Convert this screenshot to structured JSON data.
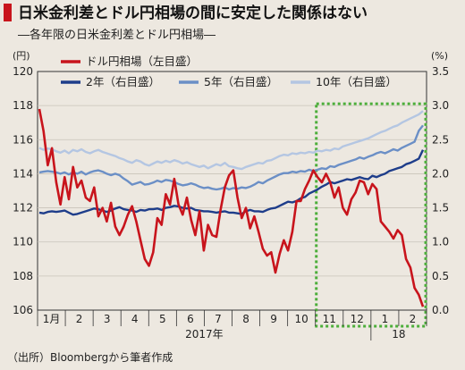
{
  "chart_data": {
    "type": "line",
    "title": "日米金利差とドル円相場の間に安定した関係はない",
    "subtitle": "―各年限の日米金利差とドル円相場―",
    "source": "（出所）Bloombergから筆者作成",
    "left_axis": {
      "unit": "(円)",
      "ylim": [
        106,
        120
      ],
      "ticks": [
        "106",
        "108",
        "110",
        "112",
        "114",
        "116",
        "118",
        "120"
      ]
    },
    "right_axis": {
      "unit": "(%)",
      "ylim": [
        0.0,
        3.5
      ],
      "ticks": [
        "0.0",
        "0.5",
        "1.0",
        "1.5",
        "2.0",
        "2.5",
        "3.0",
        "3.5"
      ]
    },
    "months": [
      "1月",
      "2",
      "3",
      "4",
      "5",
      "6",
      "7",
      "8",
      "9",
      "10",
      "11",
      "12",
      "1",
      "2"
    ],
    "year_labels": [
      {
        "text": "2017年",
        "after_month": 6
      },
      {
        "text": "18",
        "after_month": 12
      }
    ],
    "highlight": {
      "from_month": 10,
      "to_month": 14
    },
    "series": [
      {
        "name": "ドル円相場（左目盛）",
        "axis": "left",
        "color": "#c8141c",
        "values": [
          117.8,
          116.5,
          114.5,
          115.5,
          113.5,
          112.2,
          113.8,
          112.5,
          114.4,
          113.2,
          113.6,
          112.6,
          112.4,
          113.2,
          111.5,
          112.0,
          111.2,
          112.3,
          110.9,
          110.4,
          110.9,
          111.6,
          112.1,
          111.2,
          110.1,
          109.0,
          108.6,
          109.4,
          111.4,
          111.0,
          112.8,
          112.2,
          113.7,
          112.2,
          111.6,
          112.6,
          111.3,
          110.4,
          111.8,
          109.5,
          111.0,
          110.4,
          110.3,
          111.9,
          113.2,
          113.9,
          114.2,
          112.6,
          111.4,
          112.0,
          110.8,
          111.5,
          110.6,
          109.6,
          109.2,
          109.4,
          108.2,
          109.3,
          110.1,
          109.5,
          110.6,
          112.4,
          112.4,
          113.1,
          113.6,
          114.2,
          113.8,
          113.5,
          114.0,
          113.5,
          112.6,
          113.2,
          112.0,
          111.6,
          112.5,
          112.9,
          113.6,
          113.5,
          112.8,
          113.4,
          113.1,
          111.2,
          110.9,
          110.6,
          110.2,
          110.7,
          110.4,
          109.0,
          108.5,
          107.3,
          106.9,
          106.2
        ]
      },
      {
        "name": "2年（右目盛）",
        "axis": "right",
        "color": "#1e3d8a",
        "values": [
          1.43,
          1.42,
          1.44,
          1.45,
          1.44,
          1.45,
          1.46,
          1.43,
          1.4,
          1.41,
          1.43,
          1.45,
          1.47,
          1.49,
          1.48,
          1.46,
          1.44,
          1.46,
          1.49,
          1.51,
          1.48,
          1.47,
          1.46,
          1.44,
          1.47,
          1.46,
          1.48,
          1.48,
          1.49,
          1.47,
          1.5,
          1.51,
          1.53,
          1.52,
          1.5,
          1.49,
          1.5,
          1.47,
          1.46,
          1.45,
          1.45,
          1.44,
          1.43,
          1.44,
          1.45,
          1.43,
          1.43,
          1.42,
          1.41,
          1.45,
          1.47,
          1.45,
          1.45,
          1.44,
          1.47,
          1.49,
          1.5,
          1.53,
          1.56,
          1.59,
          1.58,
          1.6,
          1.64,
          1.66,
          1.71,
          1.74,
          1.77,
          1.81,
          1.84,
          1.88,
          1.86,
          1.88,
          1.9,
          1.92,
          1.91,
          1.93,
          1.95,
          1.93,
          1.92,
          1.97,
          1.95,
          1.98,
          2.0,
          2.04,
          2.06,
          2.08,
          2.1,
          2.14,
          2.16,
          2.19,
          2.22,
          2.35
        ]
      },
      {
        "name": "5年（右目盛）",
        "axis": "right",
        "color": "#6b8fc6",
        "values": [
          2.02,
          2.03,
          2.04,
          2.03,
          2.02,
          2.0,
          2.02,
          1.99,
          2.02,
          2.0,
          2.03,
          1.99,
          2.02,
          2.04,
          2.05,
          2.03,
          2.0,
          1.98,
          2.0,
          1.98,
          1.93,
          1.89,
          1.84,
          1.86,
          1.88,
          1.84,
          1.85,
          1.87,
          1.9,
          1.88,
          1.91,
          1.9,
          1.88,
          1.85,
          1.83,
          1.84,
          1.86,
          1.84,
          1.81,
          1.79,
          1.8,
          1.78,
          1.77,
          1.78,
          1.8,
          1.77,
          1.79,
          1.78,
          1.8,
          1.79,
          1.81,
          1.84,
          1.88,
          1.86,
          1.9,
          1.93,
          1.96,
          1.99,
          2.01,
          2.01,
          2.03,
          2.02,
          2.04,
          2.03,
          2.06,
          2.04,
          2.06,
          2.08,
          2.07,
          2.11,
          2.1,
          2.13,
          2.15,
          2.17,
          2.19,
          2.21,
          2.24,
          2.22,
          2.25,
          2.27,
          2.3,
          2.32,
          2.3,
          2.33,
          2.36,
          2.34,
          2.38,
          2.41,
          2.44,
          2.47,
          2.63,
          2.71
        ]
      },
      {
        "name": "10年（右目盛）",
        "axis": "right",
        "color": "#b4c6e2",
        "values": [
          2.38,
          2.35,
          2.37,
          2.36,
          2.33,
          2.31,
          2.34,
          2.3,
          2.35,
          2.33,
          2.36,
          2.32,
          2.3,
          2.33,
          2.35,
          2.32,
          2.3,
          2.28,
          2.26,
          2.23,
          2.21,
          2.18,
          2.16,
          2.2,
          2.18,
          2.14,
          2.12,
          2.15,
          2.18,
          2.16,
          2.19,
          2.17,
          2.2,
          2.18,
          2.15,
          2.17,
          2.14,
          2.12,
          2.1,
          2.12,
          2.08,
          2.11,
          2.14,
          2.12,
          2.16,
          2.11,
          2.1,
          2.08,
          2.07,
          2.1,
          2.12,
          2.14,
          2.16,
          2.15,
          2.19,
          2.2,
          2.23,
          2.26,
          2.28,
          2.27,
          2.3,
          2.29,
          2.31,
          2.3,
          2.32,
          2.31,
          2.34,
          2.33,
          2.35,
          2.34,
          2.37,
          2.36,
          2.4,
          2.42,
          2.44,
          2.46,
          2.48,
          2.5,
          2.52,
          2.55,
          2.58,
          2.61,
          2.63,
          2.66,
          2.69,
          2.71,
          2.75,
          2.78,
          2.81,
          2.84,
          2.87,
          2.92
        ]
      }
    ]
  }
}
